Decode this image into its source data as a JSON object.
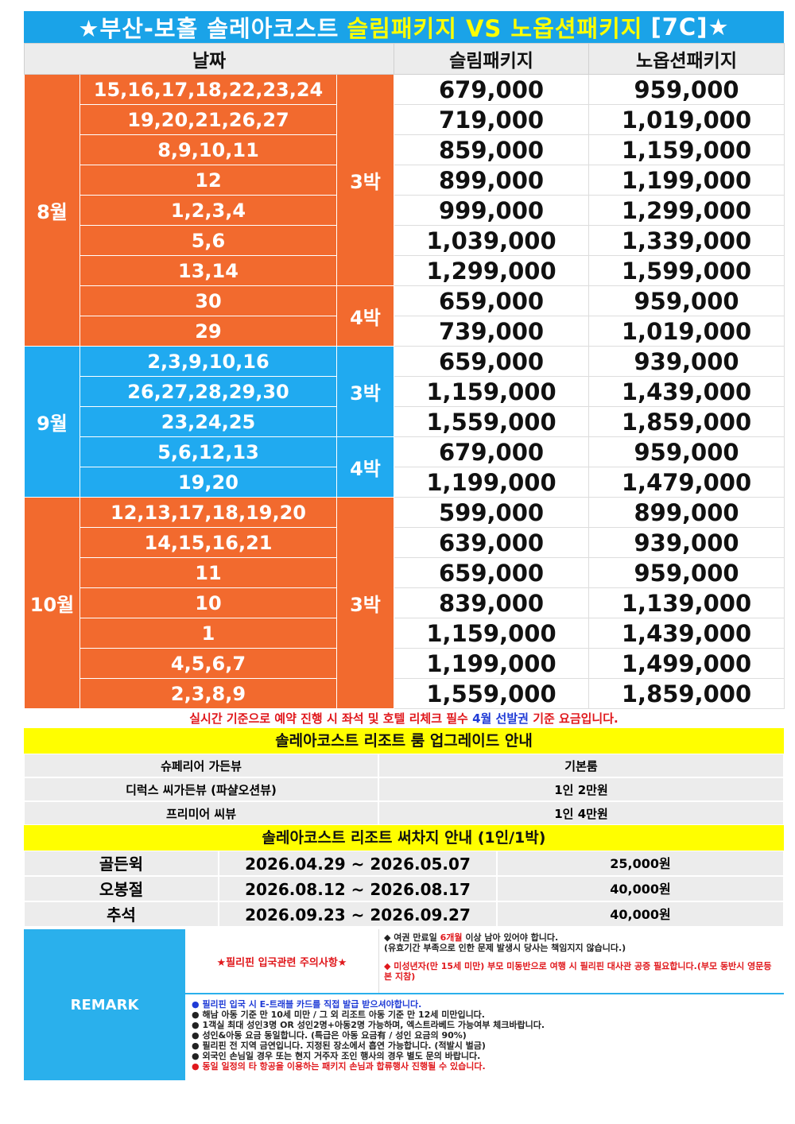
{
  "title": {
    "a": "★부산-보홀 솔레아코스트",
    "b": "슬림패키지 VS 노옵션패키지",
    "c": "[7C]★"
  },
  "header": {
    "date": "날짜",
    "slim": "슬림패키지",
    "noopt": "노옵션패키지"
  },
  "rows": [
    {
      "dates": "15,16,17,18,22,23,24",
      "slim": "679,000",
      "noopt": "959,000"
    },
    {
      "dates": "19,20,21,26,27",
      "slim": "719,000",
      "noopt": "1,019,000"
    },
    {
      "dates": "8,9,10,11",
      "slim": "859,000",
      "noopt": "1,159,000"
    },
    {
      "dates": "12",
      "slim": "899,000",
      "noopt": "1,199,000"
    },
    {
      "dates": "1,2,3,4",
      "slim": "999,000",
      "noopt": "1,299,000"
    },
    {
      "dates": "5,6",
      "slim": "1,039,000",
      "noopt": "1,339,000"
    },
    {
      "dates": "13,14",
      "slim": "1,299,000",
      "noopt": "1,599,000"
    },
    {
      "dates": "30",
      "slim": "659,000",
      "noopt": "959,000"
    },
    {
      "dates": "29",
      "slim": "739,000",
      "noopt": "1,019,000"
    },
    {
      "dates": "2,3,9,10,16",
      "slim": "659,000",
      "noopt": "939,000"
    },
    {
      "dates": "26,27,28,29,30",
      "slim": "1,159,000",
      "noopt": "1,439,000"
    },
    {
      "dates": "23,24,25",
      "slim": "1,559,000",
      "noopt": "1,859,000"
    },
    {
      "dates": "5,6,12,13",
      "slim": "679,000",
      "noopt": "959,000"
    },
    {
      "dates": "19,20",
      "slim": "1,199,000",
      "noopt": "1,479,000"
    },
    {
      "dates": "12,13,17,18,19,20",
      "slim": "599,000",
      "noopt": "899,000"
    },
    {
      "dates": "14,15,16,21",
      "slim": "639,000",
      "noopt": "939,000"
    },
    {
      "dates": "11",
      "slim": "659,000",
      "noopt": "959,000"
    },
    {
      "dates": "10",
      "slim": "839,000",
      "noopt": "1,139,000"
    },
    {
      "dates": "1",
      "slim": "1,159,000",
      "noopt": "1,439,000"
    },
    {
      "dates": "4,5,6,7",
      "slim": "1,199,000",
      "noopt": "1,499,000"
    },
    {
      "dates": "2,3,8,9",
      "slim": "1,559,000",
      "noopt": "1,859,000"
    }
  ],
  "months": {
    "aug": "8월",
    "sep": "9월",
    "oct": "10월"
  },
  "nights": {
    "n3": "3박",
    "n4": "4박"
  },
  "note": {
    "a": "실시간 기준으로 예약 진행 시 좌석 및 호텔 리체크 필수",
    "b": "4월 선발권",
    "c": "기준 요금입니다."
  },
  "upgrade": {
    "title": "솔레아코스트 리조트 룸 업그레이드 안내",
    "rows": [
      {
        "room": "슈페리어 가든뷰",
        "price": "기본룸"
      },
      {
        "room": "디럭스 씨가든뷰 (파샬오션뷰)",
        "price": "1인 2만원"
      },
      {
        "room": "프리미어 씨뷰",
        "price": "1인 4만원"
      }
    ]
  },
  "surcharge": {
    "title": "솔레아코스트 리조트 써차지 안내 (1인/1박)",
    "rows": [
      {
        "name": "골든윅",
        "period": "2026.04.29 ~ 2026.05.07",
        "fee": "25,000원"
      },
      {
        "name": "오봉절",
        "period": "2026.08.12 ~ 2026.08.17",
        "fee": "40,000원"
      },
      {
        "name": "추석",
        "period": "2026.09.23 ~ 2026.09.27",
        "fee": "40,000원"
      }
    ]
  },
  "remark": {
    "label": "REMARK",
    "warn": "★필리핀 입국관련 주의사항★",
    "p1a": "◆ 여권 만료일",
    "p1b": "6개월",
    "p1c": "이상 남아 있어야 합니다.",
    "p1d": "(유효기간 부족으로 인한 문제 발생시 당사는 책임지지 않습니다.)",
    "p2": "◆ 미성년자(만 15세 미만) 부모 미동반으로 여행 시 필리핀 대사관 공증 필요합니다.(부모 동반시 영문등본 지참)",
    "items": [
      "필리핀 입국 시 E-트래블 카드를 직접 발급 받으셔야합니다.",
      "해남 아동 기준 만 10세 미만 / 그 외 리조트 아동 기준 만 12세 미만입니다.",
      "1객실 최대 성인3명 OR 성인2명+아동2명 가능하며, 엑스트라베드 가능여부 체크바랍니다.",
      "성인&아동 요금 동일합니다. (특급은 아동 요금有 / 성인 요금의 90%)",
      "필리핀 전 지역 금연입니다. 지정된 장소에서 흡연 가능합니다. (적발시 벌금)",
      "외국인 손님일 경우 또는 현지 거주자 조인 행사의 경우 별도 문의 바랍니다.",
      "동일 일정의 타 항공을 이용하는 패키지 손님과 합류행사 진행될 수 있습니다."
    ]
  }
}
